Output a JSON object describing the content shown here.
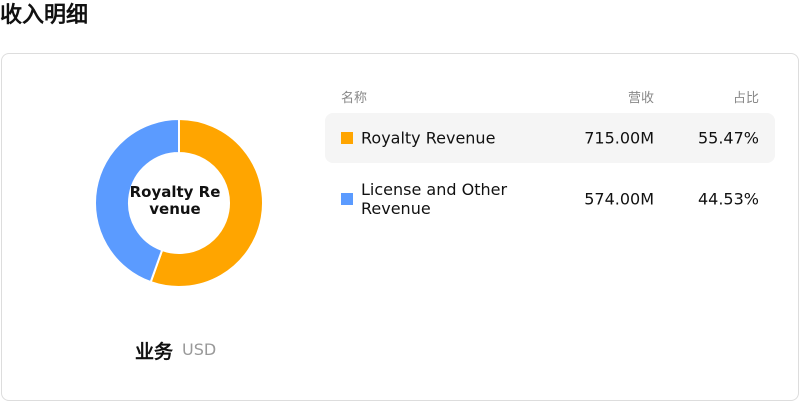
{
  "title": "收入明细",
  "chart_data": {
    "type": "pie",
    "donut": true,
    "center_label": "Royalty Revenue",
    "categories": [
      "Royalty Revenue",
      "License and Other Revenue"
    ],
    "values": [
      55.47,
      44.53
    ],
    "value_labels": [
      "55.47%",
      "44.53%"
    ],
    "colors": [
      "#ffa500",
      "#5b9bff"
    ]
  },
  "caption": {
    "label": "业务",
    "unit": "USD"
  },
  "table": {
    "columns": [
      "名称",
      "营收",
      "占比"
    ],
    "revenue": [
      "715.00M",
      "574.00M"
    ]
  }
}
